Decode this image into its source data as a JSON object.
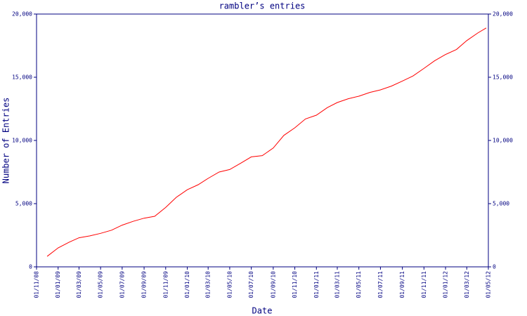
{
  "chart_data": {
    "type": "line",
    "title": "rambler’s entries",
    "xlabel": "Date",
    "ylabel": "Number of Entries",
    "x": [
      "2008-12-01",
      "2009-01-01",
      "2009-02-01",
      "2009-03-01",
      "2009-04-01",
      "2009-05-01",
      "2009-06-01",
      "2009-07-01",
      "2009-08-01",
      "2009-09-01",
      "2009-10-01",
      "2009-11-01",
      "2009-12-01",
      "2010-01-01",
      "2010-02-01",
      "2010-03-01",
      "2010-04-01",
      "2010-05-01",
      "2010-06-01",
      "2010-07-01",
      "2010-08-01",
      "2010-09-01",
      "2010-10-01",
      "2010-11-01",
      "2010-12-01",
      "2011-01-01",
      "2011-02-01",
      "2011-03-01",
      "2011-04-01",
      "2011-05-01",
      "2011-06-01",
      "2011-07-01",
      "2011-08-01",
      "2011-09-01",
      "2011-10-01",
      "2011-11-01",
      "2011-12-01",
      "2012-01-01",
      "2012-02-01",
      "2012-03-01",
      "2012-04-01",
      "2012-04-25"
    ],
    "series": [
      {
        "name": "rambler",
        "color": "#ff0000",
        "values": [
          830,
          1500,
          1950,
          2300,
          2450,
          2650,
          2900,
          3300,
          3600,
          3850,
          4000,
          4700,
          5500,
          6100,
          6500,
          7000,
          7500,
          7700,
          8200,
          8700,
          8800,
          9400,
          10400,
          11000,
          11700,
          12000,
          12600,
          13000,
          13300,
          13500,
          13800,
          14000,
          14300,
          14700,
          15100,
          15700,
          16300,
          16800,
          17200,
          17900,
          18500,
          18900
        ]
      }
    ],
    "xlim": [
      "2008-11-01",
      "2012-05-01"
    ],
    "xticks": [
      {
        "value": "2008-11-01",
        "label": "01/11/08"
      },
      {
        "value": "2009-01-01",
        "label": "01/01/09"
      },
      {
        "value": "2009-03-01",
        "label": "01/03/09"
      },
      {
        "value": "2009-05-01",
        "label": "01/05/09"
      },
      {
        "value": "2009-07-01",
        "label": "01/07/09"
      },
      {
        "value": "2009-09-01",
        "label": "01/09/09"
      },
      {
        "value": "2009-11-01",
        "label": "01/11/09"
      },
      {
        "value": "2010-01-01",
        "label": "01/01/10"
      },
      {
        "value": "2010-03-01",
        "label": "01/03/10"
      },
      {
        "value": "2010-05-01",
        "label": "01/05/10"
      },
      {
        "value": "2010-07-01",
        "label": "01/07/10"
      },
      {
        "value": "2010-09-01",
        "label": "01/09/10"
      },
      {
        "value": "2010-11-01",
        "label": "01/11/10"
      },
      {
        "value": "2011-01-01",
        "label": "01/01/11"
      },
      {
        "value": "2011-03-01",
        "label": "01/03/11"
      },
      {
        "value": "2011-05-01",
        "label": "01/05/11"
      },
      {
        "value": "2011-07-01",
        "label": "01/07/11"
      },
      {
        "value": "2011-09-01",
        "label": "01/09/11"
      },
      {
        "value": "2011-11-01",
        "label": "01/11/11"
      },
      {
        "value": "2012-01-01",
        "label": "01/01/12"
      },
      {
        "value": "2012-03-01",
        "label": "01/03/12"
      },
      {
        "value": "2012-05-01",
        "label": "01/05/12"
      }
    ],
    "ylim": [
      0,
      20000
    ],
    "yticks": [
      0,
      {
        "value": 5000,
        "label": "5,000"
      },
      {
        "value": 10000,
        "label": "10,000"
      },
      {
        "value": 15000,
        "label": "15,000"
      },
      {
        "value": 20000,
        "label": "20,000"
      }
    ],
    "right_axis": true,
    "grid": false
  }
}
